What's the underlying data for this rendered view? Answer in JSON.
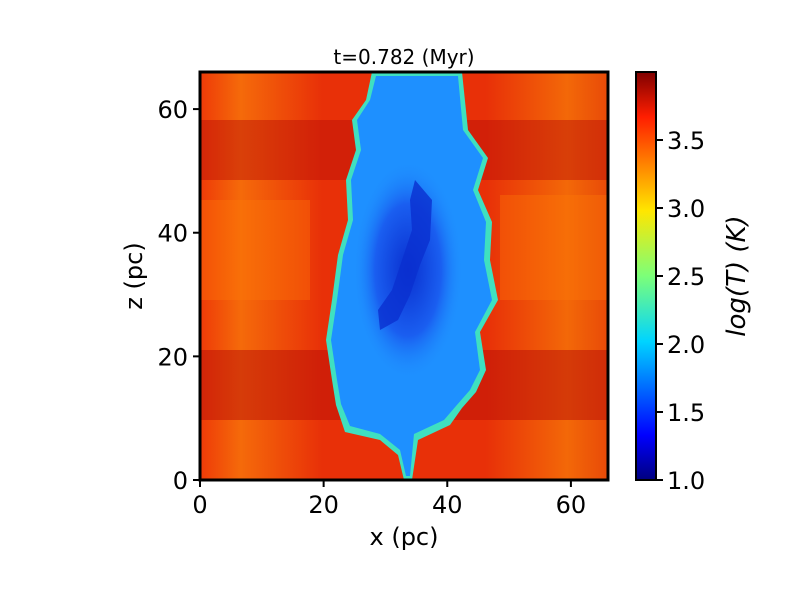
{
  "chart_data": {
    "type": "heatmap",
    "title": "t=0.782 (Myr)",
    "xlabel": "x (pc)",
    "ylabel": "z (pc)",
    "xlim": [
      0,
      66
    ],
    "ylim": [
      0,
      66
    ],
    "x_ticks": [
      "0",
      "20",
      "40",
      "60"
    ],
    "y_ticks": [
      "0",
      "20",
      "40",
      "60"
    ],
    "colorbar": {
      "label": "log(T) (K)",
      "range": [
        1.0,
        4.0
      ],
      "ticks": [
        "1.0",
        "1.5",
        "2.0",
        "2.5",
        "3.0",
        "3.5"
      ],
      "colormap": "jet"
    },
    "description_of_field": {
      "background_logT": 3.75,
      "cold_cloud_logT": 1.8,
      "cold_core_logT": 1.2
    },
    "colors": {
      "hot": "#e8250a",
      "hotter": "#b80d08",
      "warm": "#ff6a00",
      "cold": "#1e90ff",
      "colder": "#0a3fd8",
      "edge": "#3fe0c0"
    }
  }
}
